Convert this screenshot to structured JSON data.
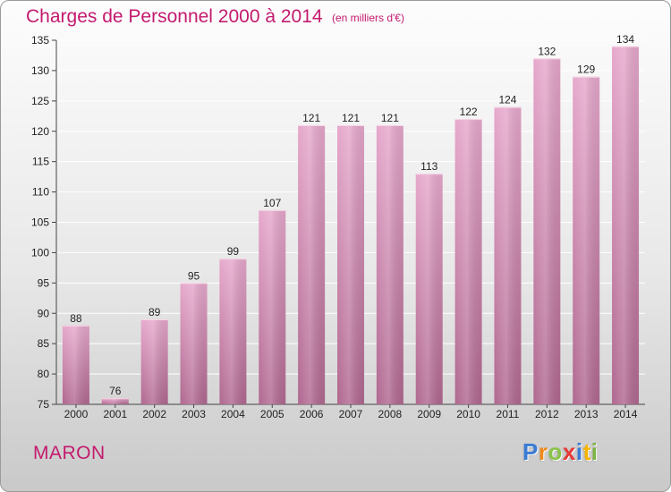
{
  "header": {
    "title": "Charges de Personnel 2000 à 2014",
    "subtitle": "(en milliers d'€)"
  },
  "footer": {
    "place": "MARON",
    "logo_letters": [
      "P",
      "r",
      "o",
      "x",
      "i",
      "t",
      "i"
    ],
    "logo_colors": [
      "#3a7bd5",
      "#f08a1c",
      "#8bc34a",
      "#e53935",
      "#3a7bd5",
      "#f5b400",
      "#7cb342"
    ]
  },
  "colors": {
    "accent": "#c41a6e",
    "bar_light": "#e6a8cc",
    "bar_dark": "#b06890"
  },
  "chart_data": {
    "type": "bar",
    "title": "Charges de Personnel 2000 à 2014",
    "subtitle": "(en milliers d'€)",
    "xlabel": "",
    "ylabel": "",
    "categories": [
      "2000",
      "2001",
      "2002",
      "2003",
      "2004",
      "2005",
      "2006",
      "2007",
      "2008",
      "2009",
      "2010",
      "2011",
      "2012",
      "2013",
      "2014"
    ],
    "values": [
      88,
      76,
      89,
      95,
      99,
      107,
      121,
      121,
      121,
      113,
      122,
      124,
      132,
      129,
      134
    ],
    "ylim": [
      75,
      135
    ],
    "yticks": [
      75,
      80,
      85,
      90,
      95,
      100,
      105,
      110,
      115,
      120,
      125,
      130,
      135
    ],
    "grid": "horizontal",
    "data_labels": true,
    "legend": "none"
  }
}
